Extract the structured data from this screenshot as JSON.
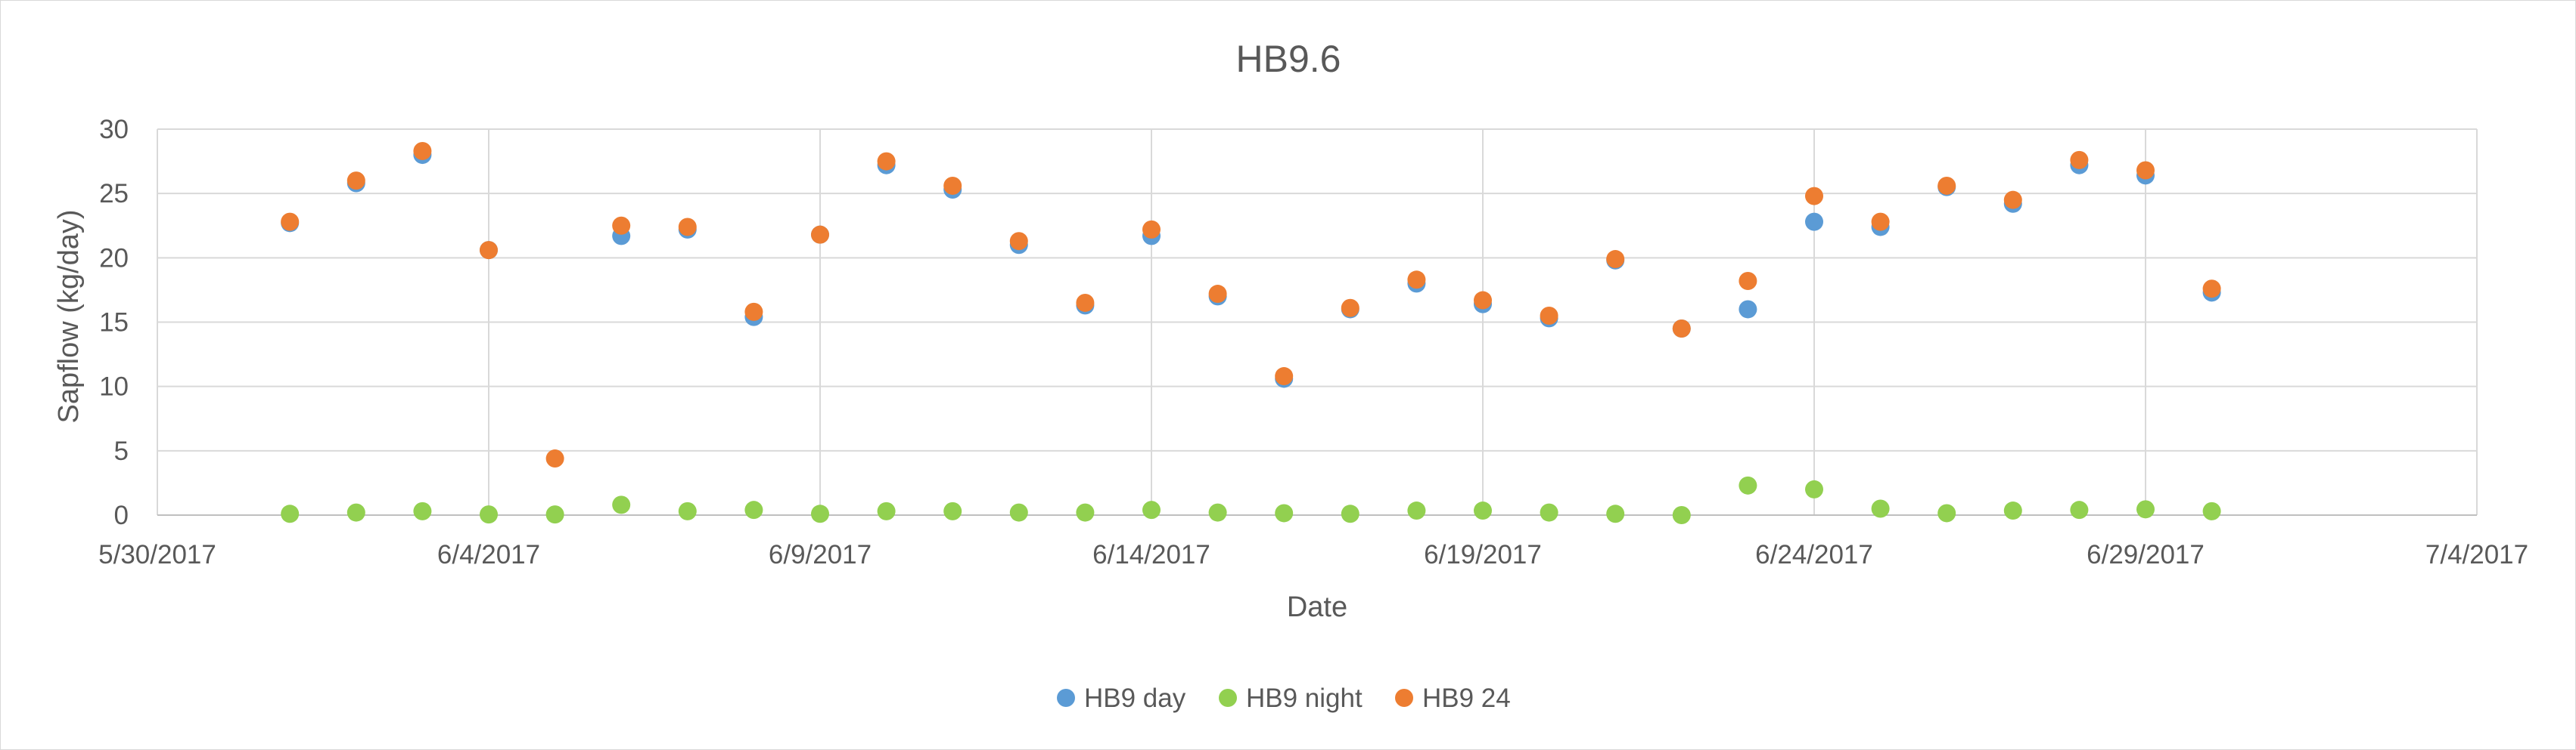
{
  "chart_data": {
    "type": "scatter",
    "title": "HB9.6",
    "xlabel": "Date",
    "ylabel": "Sapflow (kg/day)",
    "xlim": [
      "5/30/2017",
      "7/4/2017"
    ],
    "ylim": [
      0,
      30
    ],
    "x_ticks": [
      "5/30/2017",
      "6/4/2017",
      "6/9/2017",
      "6/14/2017",
      "6/19/2017",
      "6/24/2017",
      "6/29/2017",
      "7/4/2017"
    ],
    "y_ticks": [
      0,
      5,
      10,
      15,
      20,
      25,
      30
    ],
    "grid": "both",
    "legend_position": "bottom",
    "x": [
      "6/1/2017",
      "6/2/2017",
      "6/3/2017",
      "6/4/2017",
      "6/5/2017",
      "6/6/2017",
      "6/7/2017",
      "6/8/2017",
      "6/9/2017",
      "6/10/2017",
      "6/11/2017",
      "6/12/2017",
      "6/13/2017",
      "6/14/2017",
      "6/15/2017",
      "6/16/2017",
      "6/17/2017",
      "6/18/2017",
      "6/19/2017",
      "6/20/2017",
      "6/21/2017",
      "6/22/2017",
      "6/23/2017",
      "6/24/2017",
      "6/25/2017",
      "6/26/2017",
      "6/27/2017",
      "6/28/2017",
      "6/29/2017",
      "6/30/2017"
    ],
    "series": [
      {
        "name": "HB9 day",
        "color": "#5b9bd5",
        "values": [
          22.7,
          25.8,
          28.0,
          20.6,
          null,
          21.7,
          22.2,
          15.4,
          21.8,
          27.2,
          25.3,
          21.0,
          16.3,
          21.7,
          17.0,
          10.6,
          16.0,
          18.0,
          16.4,
          15.3,
          19.8,
          14.5,
          16.0,
          22.8,
          22.4,
          25.5,
          24.2,
          27.2,
          26.4,
          17.3
        ]
      },
      {
        "name": "HB9 night",
        "color": "#92d050",
        "values": [
          0.1,
          0.2,
          0.3,
          0.05,
          0.05,
          0.8,
          0.3,
          0.4,
          0.1,
          0.3,
          0.3,
          0.2,
          0.2,
          0.4,
          0.2,
          0.15,
          0.1,
          0.35,
          0.35,
          0.2,
          0.1,
          0.0,
          2.3,
          2.0,
          0.5,
          0.15,
          0.35,
          0.4,
          0.45,
          0.3
        ]
      },
      {
        "name": "HB9 24",
        "color": "#ed7d31",
        "values": [
          22.8,
          26.0,
          28.3,
          20.6,
          4.4,
          22.5,
          22.4,
          15.8,
          21.8,
          27.5,
          25.6,
          21.3,
          16.5,
          22.2,
          17.2,
          10.8,
          16.1,
          18.3,
          16.7,
          15.5,
          19.9,
          14.5,
          18.2,
          24.8,
          22.8,
          25.6,
          24.5,
          27.6,
          26.8,
          17.6
        ]
      }
    ]
  }
}
